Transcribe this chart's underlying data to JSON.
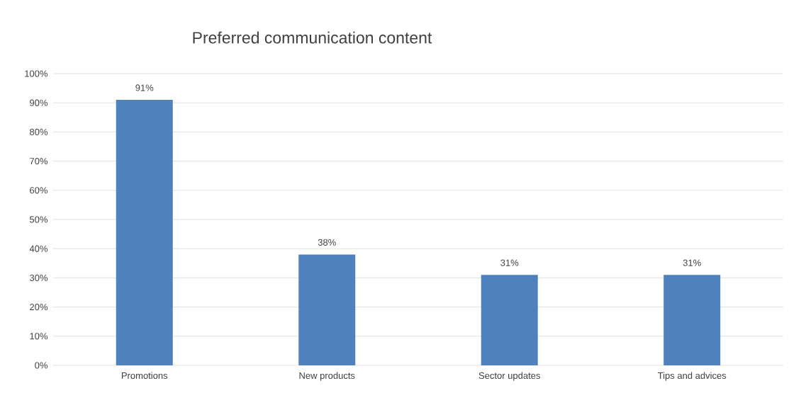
{
  "chart_data": {
    "type": "bar",
    "title": "Preferred communication content",
    "categories": [
      "Promotions",
      "New products",
      "Sector updates",
      "Tips and advices"
    ],
    "values": [
      91,
      38,
      31,
      31
    ],
    "value_labels": [
      "91%",
      "38%",
      "31%",
      "31%"
    ],
    "color": "#4f81bd",
    "ylim": [
      0,
      100
    ],
    "yticks": [
      {
        "value": 0,
        "label": "0%"
      },
      {
        "value": 10,
        "label": "10%"
      },
      {
        "value": 20,
        "label": "20%"
      },
      {
        "value": 30,
        "label": "30%"
      },
      {
        "value": 40,
        "label": "40%"
      },
      {
        "value": 50,
        "label": "50%"
      },
      {
        "value": 60,
        "label": "60%"
      },
      {
        "value": 70,
        "label": "70%"
      },
      {
        "value": 80,
        "label": "80%"
      },
      {
        "value": 90,
        "label": "90%"
      },
      {
        "value": 100,
        "label": "100%"
      }
    ],
    "grid": "y"
  }
}
